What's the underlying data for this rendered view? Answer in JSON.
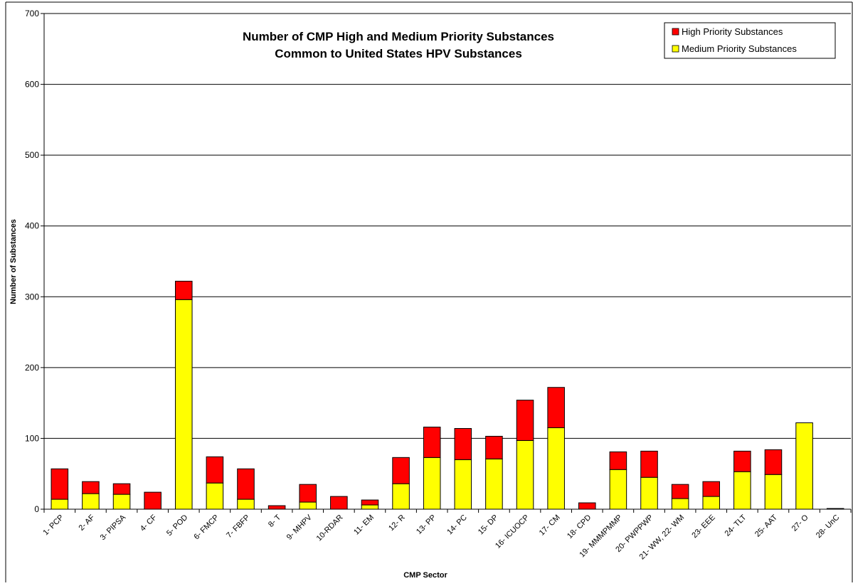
{
  "chart_data": {
    "type": "bar",
    "stacked": true,
    "title_lines": [
      "Number of CMP High and Medium Priority Substances",
      "Common to United States HPV Substances"
    ],
    "xlabel": "CMP Sector",
    "ylabel": "Number of Substances",
    "ylim": [
      0,
      700
    ],
    "yticks": [
      0,
      100,
      200,
      300,
      400,
      500,
      600,
      700
    ],
    "grid": true,
    "legend_position": "top-right",
    "categories": [
      "1- PCP",
      "2- AF",
      "3- PIPSA",
      "4- CF",
      "5- POD",
      "6- FMCP",
      "7- FBFP",
      "8- T",
      "9- MHPV",
      "10-RDAR",
      "11- EM",
      "12- R",
      "13- PP",
      "14- PC",
      "15- DP",
      "16- ICUOCP",
      "17- CM",
      "18- CPD",
      "19- MMMPMMP",
      "20- PWPPWP",
      "21- WW, 22- WM",
      "23- EEE",
      "24- TLT",
      "25- AAT",
      "27- O",
      "28- UnC"
    ],
    "series": [
      {
        "name": "Medium Priority Substances",
        "color": "#ffff00",
        "values": [
          14,
          22,
          21,
          0,
          296,
          37,
          14,
          0,
          10,
          0,
          6,
          36,
          73,
          70,
          71,
          97,
          115,
          0,
          56,
          45,
          15,
          18,
          53,
          49,
          122,
          1
        ]
      },
      {
        "name": "High Priority Substances",
        "color": "#ff0000",
        "values": [
          43,
          17,
          15,
          24,
          26,
          37,
          43,
          5,
          25,
          18,
          7,
          37,
          43,
          44,
          32,
          57,
          57,
          9,
          25,
          37,
          20,
          21,
          29,
          35,
          0,
          0
        ]
      }
    ],
    "legend_order": [
      "High Priority Substances",
      "Medium Priority Substances"
    ]
  }
}
